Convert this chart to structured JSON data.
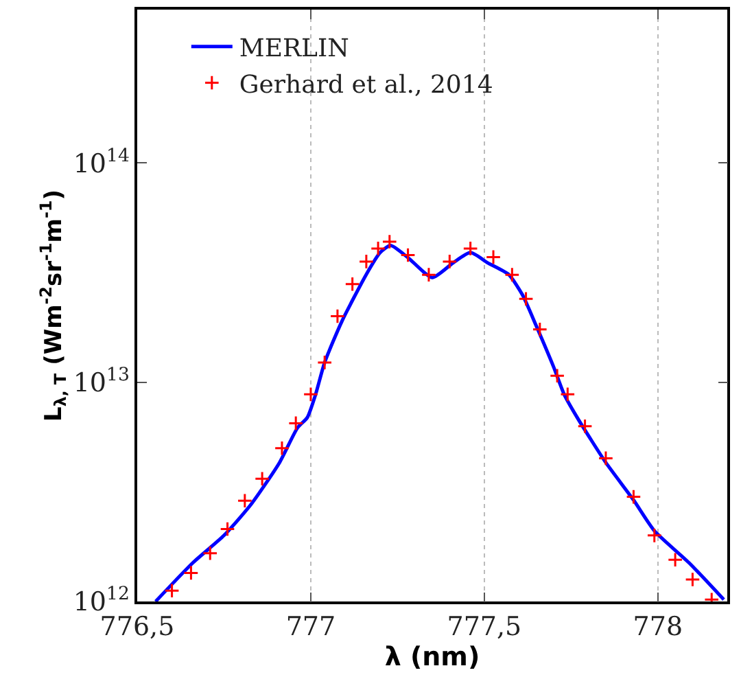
{
  "chart_data": {
    "type": "line",
    "xlabel": "λ (nm)",
    "ylabel": "L$_{λ, T}$ (Wm$^{-2}$sr$^{-1}$m$^{-1}$)",
    "log": "y",
    "grid": "x",
    "legend": "top left",
    "xlim": [
      776.5,
      778.2
    ],
    "xticks": [
      {
        "value": 776.5,
        "label": "776,5"
      },
      777,
      {
        "value": 777.5,
        "label": "777,5"
      },
      778
    ],
    "ylim": [
      1000000000000.0,
      500000000000000.0
    ],
    "yticks": [
      {
        "value": 1000000000000.0,
        "label": "10$^{12}$"
      },
      {
        "value": 10000000000000.0,
        "label": "10$^{13}$"
      },
      {
        "value": 100000000000000.0,
        "label": "10$^{14}$"
      }
    ],
    "series": [
      {
        "name": "MERLIN",
        "color": "#0000ff",
        "line_style": "solid",
        "marker": "none",
        "x": [
          776.553,
          776.66,
          776.75,
          776.83,
          776.91,
          776.962,
          776.99,
          777.014,
          777.04,
          777.09,
          777.16,
          777.2,
          777.23,
          777.28,
          777.35,
          777.41,
          777.46,
          777.51,
          777.57,
          777.61,
          777.65,
          777.7,
          777.73,
          777.77,
          777.85,
          777.93,
          777.99,
          778.09,
          778.19
        ],
        "values": [
          1000000000000.0,
          1500000000000.0,
          2000000000000.0,
          2800000000000.0,
          4300000000000.0,
          6200000000000.0,
          6900000000000.0,
          8800000000000.0,
          12300000000000.0,
          19000000000000.0,
          31000000000000.0,
          39000000000000.0,
          42000000000000.0,
          37000000000000.0,
          30000000000000.0,
          35000000000000.0,
          39000000000000.0,
          35000000000000.0,
          31000000000000.0,
          25000000000000.0,
          18000000000000.0,
          11700000000000.0,
          8800000000000.0,
          6800000000000.0,
          4300000000000.0,
          2900000000000.0,
          2100000000000.0,
          1500000000000.0,
          1020000000000.0
        ]
      },
      {
        "name": "Gerhard et al., 2014",
        "type": "scatter",
        "color": "#ff0000",
        "marker": "cross",
        "x": [
          776.6,
          776.655,
          776.71,
          776.76,
          776.81,
          776.86,
          776.917,
          776.957,
          777.0,
          777.04,
          777.077,
          777.12,
          777.16,
          777.194,
          777.227,
          777.28,
          777.34,
          777.4,
          777.46,
          777.526,
          777.58,
          777.62,
          777.66,
          777.71,
          777.74,
          777.79,
          777.85,
          777.93,
          777.99,
          778.05,
          778.1,
          778.155
        ],
        "values": [
          1120000000000.0,
          1350000000000.0,
          1660000000000.0,
          2140000000000.0,
          2880000000000.0,
          3630000000000.0,
          5000000000000.0,
          6500000000000.0,
          8800000000000.0,
          12300000000000.0,
          20000000000000.0,
          28000000000000.0,
          35500000000000.0,
          40700000000000.0,
          43700000000000.0,
          38000000000000.0,
          30900000000000.0,
          35500000000000.0,
          40700000000000.0,
          37200000000000.0,
          30900000000000.0,
          24000000000000.0,
          17400000000000.0,
          10700000000000.0,
          8800000000000.0,
          6300000000000.0,
          4500000000000.0,
          3000000000000.0,
          2000000000000.0,
          1550000000000.0,
          1260000000000.0,
          1020000000000.0
        ]
      }
    ]
  }
}
